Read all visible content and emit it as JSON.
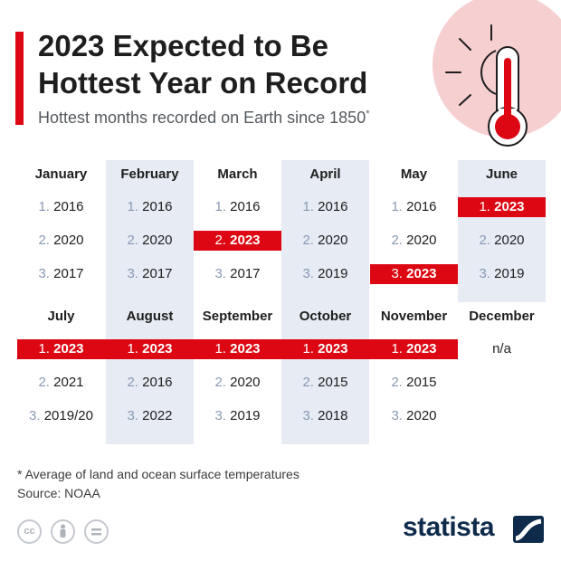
{
  "header": {
    "title": "2023 Expected to Be Hottest Year on Record",
    "subtitle": "Hottest months recorded on Earth since 1850",
    "subtitle_mark": "*"
  },
  "chart_data": {
    "type": "table",
    "highlight_year": "2023",
    "highlight_color": "#dc0712",
    "column_shade": "#e6ebf4",
    "rows": [
      [
        {
          "month": "January",
          "ranks": [
            "2016",
            "2020",
            "2017"
          ]
        },
        {
          "month": "February",
          "ranks": [
            "2016",
            "2020",
            "2017"
          ]
        },
        {
          "month": "March",
          "ranks": [
            "2016",
            "2023",
            "2017"
          ]
        },
        {
          "month": "April",
          "ranks": [
            "2016",
            "2020",
            "2019"
          ]
        },
        {
          "month": "May",
          "ranks": [
            "2016",
            "2020",
            "2023"
          ]
        },
        {
          "month": "June",
          "ranks": [
            "2023",
            "2020",
            "2019"
          ]
        }
      ],
      [
        {
          "month": "July",
          "ranks": [
            "2023",
            "2021",
            "2019/20"
          ]
        },
        {
          "month": "August",
          "ranks": [
            "2023",
            "2016",
            "2022"
          ]
        },
        {
          "month": "September",
          "ranks": [
            "2023",
            "2020",
            "2019"
          ]
        },
        {
          "month": "October",
          "ranks": [
            "2023",
            "2015",
            "2018"
          ]
        },
        {
          "month": "November",
          "ranks": [
            "2023",
            "2015",
            "2020"
          ]
        },
        {
          "month": "December",
          "ranks": [],
          "note": "n/a"
        }
      ]
    ]
  },
  "footer": {
    "footnote": "* Average of land and ocean surface temperatures",
    "source": "Source: NOAA",
    "license_icons": [
      "cc-icon",
      "by-icon",
      "nd-icon"
    ],
    "brand": "statista",
    "brand_color": "#0f2b4c"
  }
}
